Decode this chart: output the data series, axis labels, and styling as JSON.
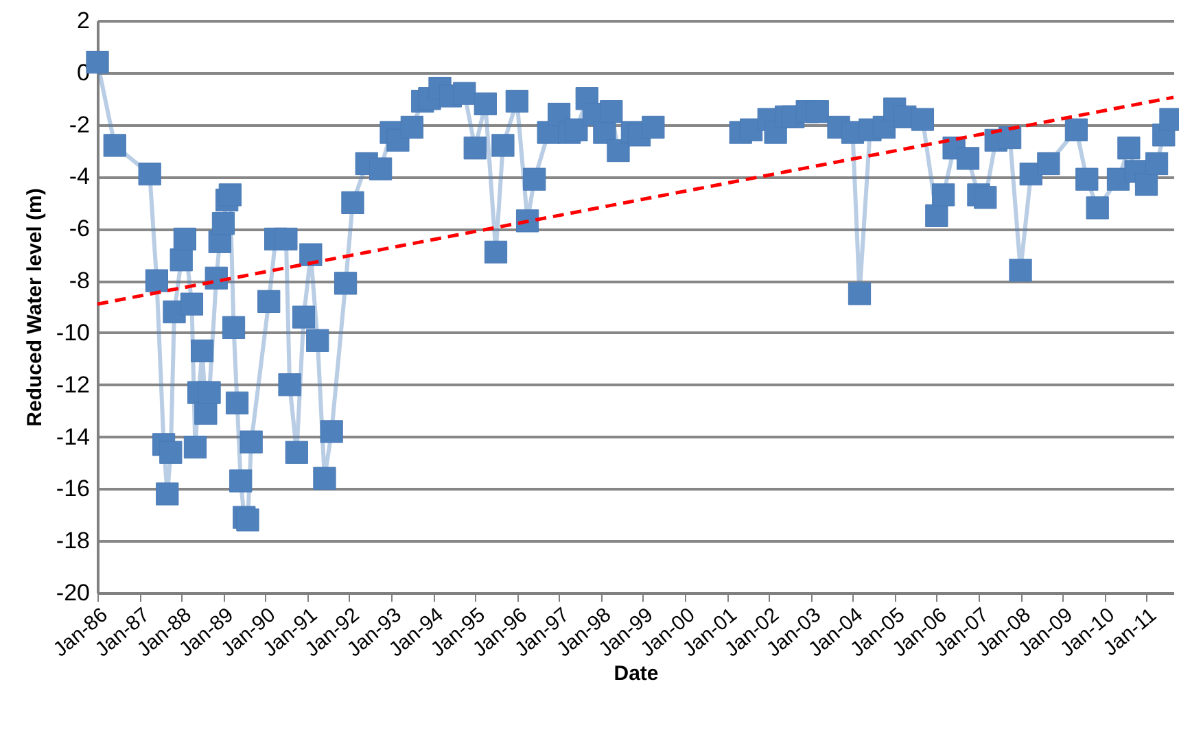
{
  "chart_data": {
    "type": "line",
    "xlabel": "Date",
    "ylabel": "Reduced Water level  (m)",
    "xlim": [
      "1986-01-01",
      "2011-08-25"
    ],
    "ylim": [
      -20,
      2
    ],
    "yticks": [
      -20,
      -18,
      -16,
      -14,
      -12,
      -10,
      -8,
      -6,
      -4,
      -2,
      0,
      2
    ],
    "xticks": [
      {
        "value": "1986-01",
        "label": "Jan-86"
      },
      {
        "value": "1987-01",
        "label": "Jan-87"
      },
      {
        "value": "1988-01",
        "label": "Jan-88"
      },
      {
        "value": "1989-01",
        "label": "Jan-89"
      },
      {
        "value": "1990-01",
        "label": "Jan-90"
      },
      {
        "value": "1991-01",
        "label": "Jan-91"
      },
      {
        "value": "1992-01",
        "label": "Jan-92"
      },
      {
        "value": "1993-01",
        "label": "Jan-93"
      },
      {
        "value": "1994-01",
        "label": "Jan-94"
      },
      {
        "value": "1995-01",
        "label": "Jan-95"
      },
      {
        "value": "1996-01",
        "label": "Jan-96"
      },
      {
        "value": "1997-01",
        "label": "Jan-97"
      },
      {
        "value": "1998-01",
        "label": "Jan-98"
      },
      {
        "value": "1999-01",
        "label": "Jan-99"
      },
      {
        "value": "2000-01",
        "label": "Jan-00"
      },
      {
        "value": "2001-01",
        "label": "Jan-01"
      },
      {
        "value": "2002-01",
        "label": "Jan-02"
      },
      {
        "value": "2003-01",
        "label": "Jan-03"
      },
      {
        "value": "2004-01",
        "label": "Jan-04"
      },
      {
        "value": "2005-01",
        "label": "Jan-05"
      },
      {
        "value": "2006-01",
        "label": "Jan-06"
      },
      {
        "value": "2007-01",
        "label": "Jan-07"
      },
      {
        "value": "2008-01",
        "label": "Jan-08"
      },
      {
        "value": "2009-01",
        "label": "Jan-09"
      },
      {
        "value": "2010-01",
        "label": "Jan-10"
      },
      {
        "value": "2011-01",
        "label": "Jan-11"
      }
    ],
    "grid": "y",
    "marker": "square",
    "line_style": "solid",
    "series": [
      {
        "color": "#4f81bd",
        "x": [
          "1986-01",
          "1986-06",
          "1987-04",
          "1987-06",
          "1987-08",
          "1987-09",
          "1987-10",
          "1987-11",
          "1988-01",
          "1988-02",
          "1988-04",
          "1988-05",
          "1988-06",
          "1988-07",
          "1988-08",
          "1988-09",
          "1988-11",
          "1988-12",
          "1989-01",
          "1989-02",
          "1989-03",
          "1989-04",
          "1989-05",
          "1989-06",
          "1989-07",
          "1989-08",
          "1989-09",
          "1990-02",
          "1990-04",
          "1990-07",
          "1990-08",
          "1990-10",
          "1990-12",
          "1991-02",
          "1991-04",
          "1991-06",
          "1991-08",
          "1991-12",
          "1992-02",
          "1992-06",
          "1992-10",
          "1993-01",
          "1993-03",
          "1993-07",
          "1993-10",
          "1993-12",
          "1994-03",
          "1994-06",
          "1994-10",
          "1995-01",
          "1995-04",
          "1995-07",
          "1995-09",
          "1996-01",
          "1996-04",
          "1996-06",
          "1996-10",
          "1997-01",
          "1997-04",
          "1997-06",
          "1997-09",
          "1997-11",
          "1998-02",
          "1998-04",
          "1998-06",
          "1998-10",
          "1998-12",
          "1999-04",
          "2000-05",
          "2001-05",
          "2001-08",
          "2002-01",
          "2002-03",
          "2002-06",
          "2002-08",
          "2002-12",
          "2003-03",
          "2003-09",
          "2004-01",
          "2004-03",
          "2004-06",
          "2004-10",
          "2005-01",
          "2005-04",
          "2005-09",
          "2006-01",
          "2006-03",
          "2006-06",
          "2006-10",
          "2007-01",
          "2007-03",
          "2007-06",
          "2007-10",
          "2008-01",
          "2008-04",
          "2008-09",
          "2009-05",
          "2009-08",
          "2009-11",
          "2010-05",
          "2010-08",
          "2010-10",
          "2011-01",
          "2011-04",
          "2011-06",
          "2011-08"
        ],
        "values": [
          0.4,
          -2.8,
          -3.9,
          -8,
          -14.3,
          -16.2,
          -14.6,
          -9.2,
          -7.2,
          -6.4,
          -8.9,
          -14.4,
          -12.3,
          -10.7,
          -13.1,
          -12.3,
          -7.9,
          -6.5,
          -5.8,
          -4.9,
          -4.7,
          -9.8,
          -12.7,
          -15.7,
          -17.1,
          -17.2,
          -14.2,
          -8.8,
          -6.4,
          -6.4,
          -12,
          -14.6,
          -9.4,
          -7,
          -10.3,
          -15.6,
          -13.8,
          -8.1,
          -5,
          -3.5,
          -3.7,
          -2.3,
          -2.6,
          -2.1,
          -1.1,
          -1,
          -0.6,
          -0.9,
          -0.8,
          -2.9,
          -1.2,
          -6.9,
          -2.8,
          -1.1,
          -5.7,
          -4.1,
          -2.3,
          -1.6,
          -2.3,
          -2.2,
          -1,
          -1.6,
          -2.3,
          -1.5,
          -3,
          -2.3,
          -2.4,
          -2.1,
          null,
          -2.3,
          -2.2,
          -1.8,
          -2.3,
          -1.7,
          -1.7,
          -1.5,
          -1.5,
          -2.1,
          -2.3,
          -8.5,
          -2.2,
          -2.1,
          -1.4,
          -1.7,
          -1.8,
          -5.5,
          -4.7,
          -2.9,
          -3.3,
          -4.7,
          -4.8,
          -2.6,
          -2.5,
          -7.6,
          -3.9,
          -3.5,
          -2.2,
          -4.1,
          -5.2,
          -4.1,
          -2.9,
          -3.8,
          -4.3,
          -3.5,
          -2.4,
          -1.8
        ]
      },
      {
        "type": "line",
        "color": "#ff0000",
        "line_style": "dashed",
        "marker": "none",
        "x": [
          "1986-01-01",
          "2011-08-25"
        ],
        "values": [
          -8.9,
          -0.95
        ]
      }
    ]
  }
}
